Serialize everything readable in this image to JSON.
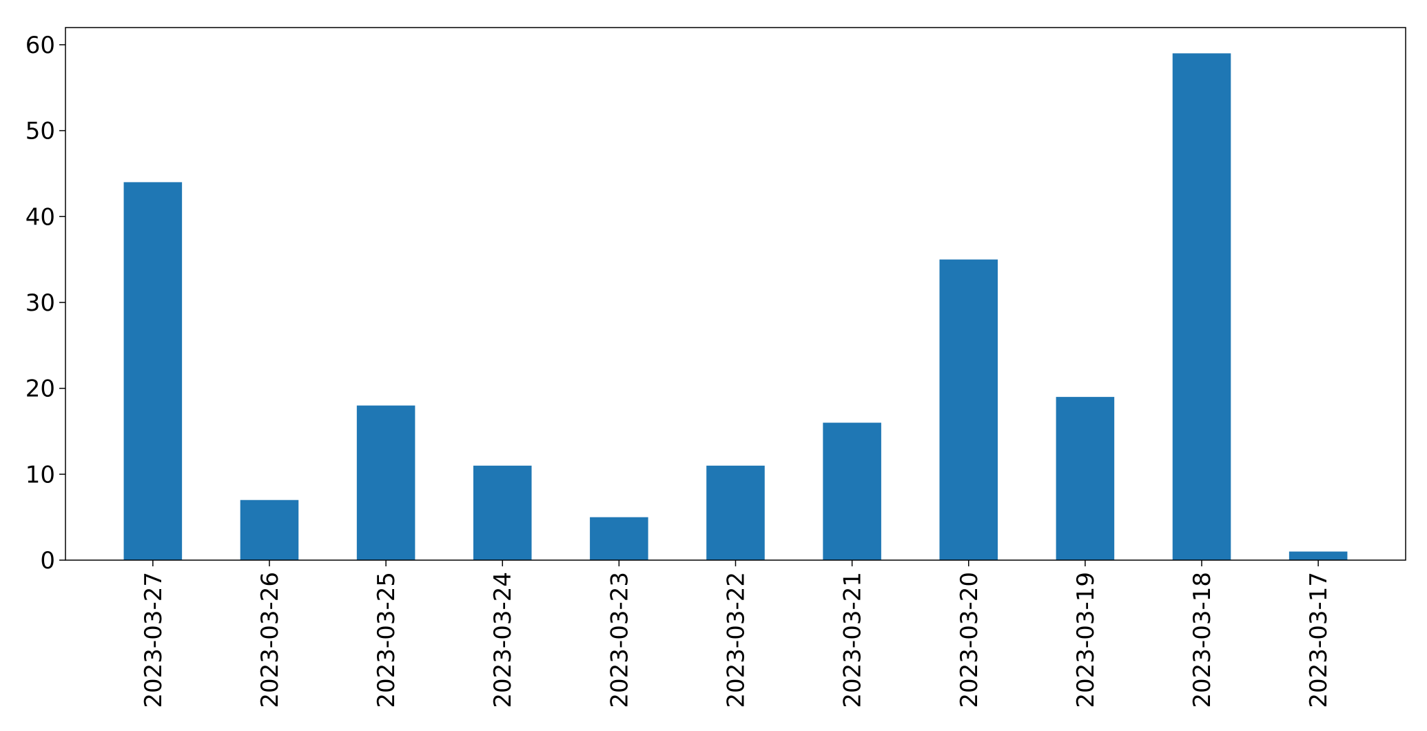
{
  "chart_data": {
    "type": "bar",
    "title": "",
    "xlabel": "",
    "ylabel": "",
    "categories": [
      "2023-03-27",
      "2023-03-26",
      "2023-03-25",
      "2023-03-24",
      "2023-03-23",
      "2023-03-22",
      "2023-03-21",
      "2023-03-20",
      "2023-03-19",
      "2023-03-18",
      "2023-03-17"
    ],
    "values": [
      44,
      7,
      18,
      11,
      5,
      11,
      16,
      35,
      19,
      59,
      1
    ],
    "ylim": [
      0,
      62
    ],
    "yticks": [
      0,
      10,
      20,
      30,
      40,
      50,
      60
    ],
    "grid": false,
    "legend": "none",
    "bar_color": "#1f77b4"
  }
}
